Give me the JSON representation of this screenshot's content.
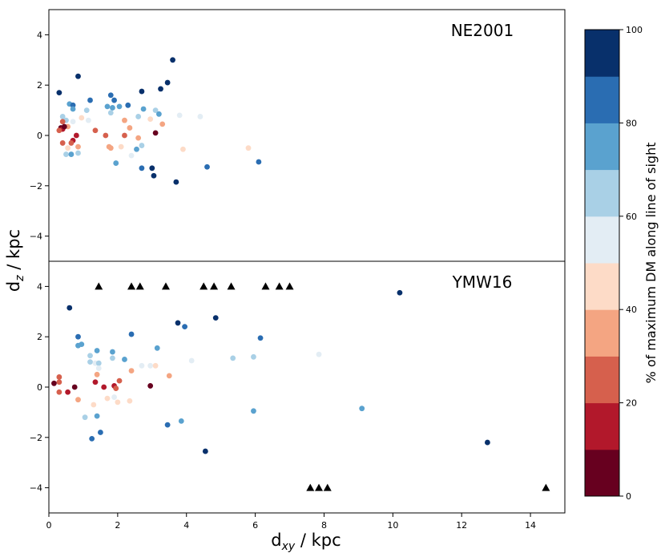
{
  "chart_data": [
    {
      "type": "scatter",
      "panel_label": "NE2001",
      "xlim": [
        0,
        15
      ],
      "ylim": [
        -5,
        5
      ],
      "yticks": [
        -4,
        -2,
        0,
        2,
        4
      ],
      "points": [
        {
          "x": 0.3,
          "y": 1.7,
          "v": 95
        },
        {
          "x": 0.85,
          "y": 2.35,
          "v": 95
        },
        {
          "x": 3.6,
          "y": 3.0,
          "v": 95
        },
        {
          "x": 3.45,
          "y": 2.1,
          "v": 95
        },
        {
          "x": 3.25,
          "y": 1.85,
          "v": 95
        },
        {
          "x": 2.7,
          "y": 1.75,
          "v": 95
        },
        {
          "x": 1.8,
          "y": 1.6,
          "v": 85
        },
        {
          "x": 1.2,
          "y": 1.4,
          "v": 85
        },
        {
          "x": 1.9,
          "y": 1.4,
          "v": 85
        },
        {
          "x": 0.6,
          "y": 1.25,
          "v": 75
        },
        {
          "x": 0.7,
          "y": 1.2,
          "v": 85
        },
        {
          "x": 0.7,
          "y": 1.05,
          "v": 75
        },
        {
          "x": 1.7,
          "y": 1.15,
          "v": 75
        },
        {
          "x": 1.85,
          "y": 1.1,
          "v": 75
        },
        {
          "x": 2.05,
          "y": 1.15,
          "v": 75
        },
        {
          "x": 2.3,
          "y": 1.2,
          "v": 85
        },
        {
          "x": 2.75,
          "y": 1.05,
          "v": 75
        },
        {
          "x": 1.1,
          "y": 1.0,
          "v": 65
        },
        {
          "x": 1.8,
          "y": 0.9,
          "v": 65
        },
        {
          "x": 3.1,
          "y": 1.0,
          "v": 65
        },
        {
          "x": 3.2,
          "y": 0.85,
          "v": 75
        },
        {
          "x": 0.4,
          "y": 0.75,
          "v": 65
        },
        {
          "x": 0.5,
          "y": 0.6,
          "v": 65
        },
        {
          "x": 0.7,
          "y": 0.55,
          "v": 55
        },
        {
          "x": 0.95,
          "y": 0.7,
          "v": 45
        },
        {
          "x": 1.15,
          "y": 0.6,
          "v": 55
        },
        {
          "x": 2.6,
          "y": 0.75,
          "v": 65
        },
        {
          "x": 2.2,
          "y": 0.6,
          "v": 35
        },
        {
          "x": 2.95,
          "y": 0.65,
          "v": 45
        },
        {
          "x": 3.8,
          "y": 0.8,
          "v": 55
        },
        {
          "x": 4.4,
          "y": 0.75,
          "v": 55
        },
        {
          "x": 3.3,
          "y": 0.45,
          "v": 35
        },
        {
          "x": 0.4,
          "y": 0.55,
          "v": 25
        },
        {
          "x": 0.55,
          "y": 0.35,
          "v": 35
        },
        {
          "x": 0.35,
          "y": 0.3,
          "v": 5
        },
        {
          "x": 0.4,
          "y": 0.25,
          "v": 15
        },
        {
          "x": 0.45,
          "y": 0.35,
          "v": 5
        },
        {
          "x": 0.3,
          "y": 0.2,
          "v": 25
        },
        {
          "x": 1.35,
          "y": 0.2,
          "v": 25
        },
        {
          "x": 1.65,
          "y": 0.0,
          "v": 25
        },
        {
          "x": 2.2,
          "y": 0.0,
          "v": 25
        },
        {
          "x": 2.35,
          "y": 0.3,
          "v": 35
        },
        {
          "x": 2.6,
          "y": -0.1,
          "v": 35
        },
        {
          "x": 3.1,
          "y": 0.1,
          "v": 5
        },
        {
          "x": 0.8,
          "y": 0.0,
          "v": 15
        },
        {
          "x": 0.7,
          "y": -0.2,
          "v": 15
        },
        {
          "x": 0.65,
          "y": -0.3,
          "v": 25
        },
        {
          "x": 0.4,
          "y": -0.3,
          "v": 25
        },
        {
          "x": 0.85,
          "y": -0.45,
          "v": 35
        },
        {
          "x": 0.55,
          "y": -0.5,
          "v": 45
        },
        {
          "x": 1.8,
          "y": -0.5,
          "v": 35
        },
        {
          "x": 1.75,
          "y": -0.45,
          "v": 35
        },
        {
          "x": 2.1,
          "y": -0.45,
          "v": 45
        },
        {
          "x": 2.55,
          "y": -0.55,
          "v": 75
        },
        {
          "x": 2.7,
          "y": -0.4,
          "v": 65
        },
        {
          "x": 3.9,
          "y": -0.55,
          "v": 45
        },
        {
          "x": 5.8,
          "y": -0.5,
          "v": 45
        },
        {
          "x": 0.5,
          "y": -0.75,
          "v": 65
        },
        {
          "x": 0.65,
          "y": -0.75,
          "v": 75
        },
        {
          "x": 0.85,
          "y": -0.7,
          "v": 65
        },
        {
          "x": 2.4,
          "y": -0.8,
          "v": 55
        },
        {
          "x": 1.95,
          "y": -1.1,
          "v": 75
        },
        {
          "x": 2.7,
          "y": -1.3,
          "v": 85
        },
        {
          "x": 3.0,
          "y": -1.3,
          "v": 95
        },
        {
          "x": 3.05,
          "y": -1.6,
          "v": 95
        },
        {
          "x": 3.7,
          "y": -1.85,
          "v": 95
        },
        {
          "x": 4.6,
          "y": -1.25,
          "v": 85
        },
        {
          "x": 6.1,
          "y": -1.05,
          "v": 85
        }
      ],
      "triangles": []
    },
    {
      "type": "scatter",
      "panel_label": "YMW16",
      "xlim": [
        0,
        15
      ],
      "ylim": [
        -5,
        5
      ],
      "yticks": [
        -4,
        -2,
        0,
        2,
        4
      ],
      "points": [
        {
          "x": 0.6,
          "y": 3.15,
          "v": 95
        },
        {
          "x": 10.2,
          "y": 3.75,
          "v": 95
        },
        {
          "x": 3.75,
          "y": 2.55,
          "v": 95
        },
        {
          "x": 3.95,
          "y": 2.4,
          "v": 85
        },
        {
          "x": 4.85,
          "y": 2.75,
          "v": 95
        },
        {
          "x": 2.4,
          "y": 2.1,
          "v": 85
        },
        {
          "x": 0.85,
          "y": 2.0,
          "v": 85
        },
        {
          "x": 0.95,
          "y": 1.7,
          "v": 75
        },
        {
          "x": 0.85,
          "y": 1.65,
          "v": 75
        },
        {
          "x": 1.4,
          "y": 1.45,
          "v": 75
        },
        {
          "x": 1.85,
          "y": 1.4,
          "v": 75
        },
        {
          "x": 3.15,
          "y": 1.55,
          "v": 75
        },
        {
          "x": 6.15,
          "y": 1.95,
          "v": 85
        },
        {
          "x": 1.2,
          "y": 1.25,
          "v": 65
        },
        {
          "x": 1.85,
          "y": 1.15,
          "v": 65
        },
        {
          "x": 2.2,
          "y": 1.1,
          "v": 75
        },
        {
          "x": 5.35,
          "y": 1.15,
          "v": 65
        },
        {
          "x": 5.95,
          "y": 1.2,
          "v": 65
        },
        {
          "x": 7.85,
          "y": 1.3,
          "v": 55
        },
        {
          "x": 1.2,
          "y": 1.0,
          "v": 65
        },
        {
          "x": 1.35,
          "y": 0.95,
          "v": 55
        },
        {
          "x": 1.45,
          "y": 0.95,
          "v": 65
        },
        {
          "x": 2.7,
          "y": 0.85,
          "v": 55
        },
        {
          "x": 2.95,
          "y": 0.85,
          "v": 55
        },
        {
          "x": 4.15,
          "y": 1.05,
          "v": 55
        },
        {
          "x": 3.1,
          "y": 0.85,
          "v": 45
        },
        {
          "x": 1.45,
          "y": 0.75,
          "v": 55
        },
        {
          "x": 2.4,
          "y": 0.65,
          "v": 35
        },
        {
          "x": 3.5,
          "y": 0.45,
          "v": 35
        },
        {
          "x": 1.4,
          "y": 0.5,
          "v": 35
        },
        {
          "x": 0.3,
          "y": 0.4,
          "v": 25
        },
        {
          "x": 0.3,
          "y": 0.2,
          "v": 25
        },
        {
          "x": 0.15,
          "y": 0.15,
          "v": 5
        },
        {
          "x": 1.35,
          "y": 0.2,
          "v": 15
        },
        {
          "x": 2.05,
          "y": 0.25,
          "v": 25
        },
        {
          "x": 0.75,
          "y": 0.0,
          "v": 5
        },
        {
          "x": 1.6,
          "y": 0.0,
          "v": 15
        },
        {
          "x": 1.9,
          "y": 0.05,
          "v": 15
        },
        {
          "x": 1.95,
          "y": -0.05,
          "v": 25
        },
        {
          "x": 2.95,
          "y": 0.05,
          "v": 5
        },
        {
          "x": 0.3,
          "y": -0.2,
          "v": 25
        },
        {
          "x": 0.55,
          "y": -0.2,
          "v": 15
        },
        {
          "x": 0.85,
          "y": -0.5,
          "v": 35
        },
        {
          "x": 1.7,
          "y": -0.45,
          "v": 45
        },
        {
          "x": 1.9,
          "y": -0.4,
          "v": 55
        },
        {
          "x": 2.0,
          "y": -0.6,
          "v": 45
        },
        {
          "x": 2.35,
          "y": -0.55,
          "v": 45
        },
        {
          "x": 1.3,
          "y": -0.7,
          "v": 45
        },
        {
          "x": 1.05,
          "y": -1.2,
          "v": 65
        },
        {
          "x": 1.4,
          "y": -1.15,
          "v": 75
        },
        {
          "x": 5.95,
          "y": -0.95,
          "v": 75
        },
        {
          "x": 9.1,
          "y": -0.85,
          "v": 75
        },
        {
          "x": 3.85,
          "y": -1.35,
          "v": 75
        },
        {
          "x": 3.45,
          "y": -1.5,
          "v": 85
        },
        {
          "x": 1.5,
          "y": -1.8,
          "v": 85
        },
        {
          "x": 1.25,
          "y": -2.05,
          "v": 85
        },
        {
          "x": 4.55,
          "y": -2.55,
          "v": 95
        },
        {
          "x": 12.75,
          "y": -2.2,
          "v": 95
        }
      ],
      "triangles": [
        {
          "x": 1.45,
          "y": 4
        },
        {
          "x": 2.4,
          "y": 4
        },
        {
          "x": 2.65,
          "y": 4
        },
        {
          "x": 3.4,
          "y": 4
        },
        {
          "x": 4.5,
          "y": 4
        },
        {
          "x": 4.8,
          "y": 4
        },
        {
          "x": 5.3,
          "y": 4
        },
        {
          "x": 6.3,
          "y": 4
        },
        {
          "x": 6.7,
          "y": 4
        },
        {
          "x": 7.0,
          "y": 4
        },
        {
          "x": 7.6,
          "y": -4
        },
        {
          "x": 7.85,
          "y": -4
        },
        {
          "x": 8.1,
          "y": -4
        },
        {
          "x": 14.45,
          "y": -4
        }
      ]
    }
  ],
  "xaxis": {
    "label_main": "d",
    "label_sub": "xy",
    "label_rest": " / kpc",
    "ticks": [
      "0",
      "2",
      "4",
      "6",
      "8",
      "10",
      "12",
      "14"
    ]
  },
  "yaxis": {
    "label_main": "d",
    "label_sub": "z",
    "label_rest": " / kpc"
  },
  "colorbar": {
    "label": "% of maximum DM along line of sight",
    "range": [
      0,
      100
    ],
    "ticks": [
      "0",
      "20",
      "40",
      "60",
      "80",
      "100"
    ],
    "colors": [
      "#67001f",
      "#b2182b",
      "#d6604d",
      "#f4a582",
      "#fddbc7",
      "#e3edf4",
      "#a9d0e6",
      "#5aa2cf",
      "#2a6db2",
      "#08306b"
    ]
  },
  "triangle_color": "#000000"
}
